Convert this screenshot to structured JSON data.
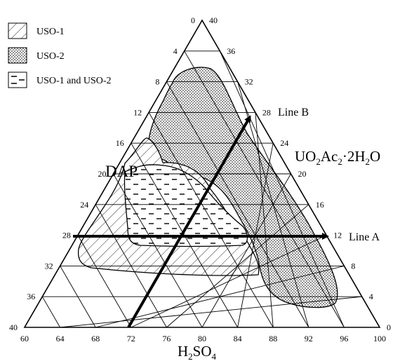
{
  "legend": [
    {
      "label": "USO-1",
      "pattern": "hatch"
    },
    {
      "label": "USO-2",
      "pattern": "dots"
    },
    {
      "label": "USO-1 and USO-2",
      "pattern": "dashes"
    }
  ],
  "axes": {
    "left_label": "DAP",
    "right_label_main": "UO",
    "right_label_sub1": "2",
    "right_label_mid": "Ac",
    "right_label_sub2": "2",
    "right_label_tail": "·2H",
    "right_label_sub3": "2",
    "right_label_end": "O",
    "bottom_label_main": "H",
    "bottom_label_sub1": "2",
    "bottom_label_mid": "SO",
    "bottom_label_sub2": "4",
    "bottom_ticks": [
      "60",
      "64",
      "68",
      "72",
      "76",
      "80",
      "84",
      "88",
      "92",
      "96",
      "100"
    ],
    "left_ticks": [
      "0",
      "4",
      "8",
      "12",
      "16",
      "20",
      "24",
      "28",
      "32",
      "36",
      "40"
    ],
    "right_ticks": [
      "40",
      "36",
      "32",
      "28",
      "24",
      "20",
      "16",
      "12",
      "8",
      "4",
      "0"
    ]
  },
  "lines": {
    "line_a": "Line A",
    "line_b": "Line B"
  },
  "colors": {
    "ink": "#000000",
    "dots_fill": "#8a8a8a",
    "region_bg": "#ffffff"
  }
}
